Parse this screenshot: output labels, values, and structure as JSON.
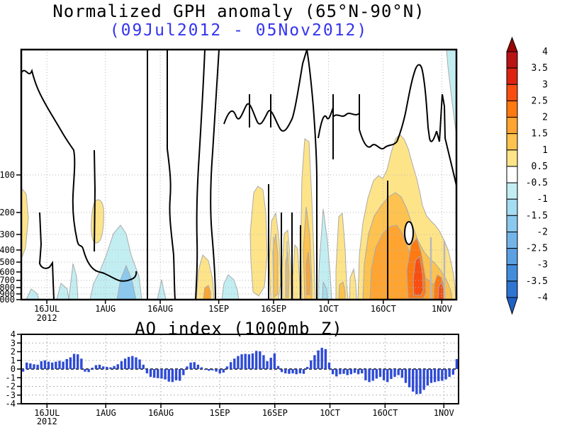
{
  "header": {
    "title": "Normalized GPH anomaly (65°N-90°N)",
    "subtitle": "(09Jul2012 - 05Nov2012)",
    "subtitle_color": "#3434f0"
  },
  "colorbar": {
    "boundary_labels": [
      "4",
      "3.5",
      "3",
      "2.5",
      "2",
      "1.5",
      "1",
      "0.5",
      "-0.5",
      "-1",
      "-1.5",
      "-2",
      "-2.5",
      "-3",
      "-3.5",
      "-4"
    ],
    "segment_colors": [
      "#b81414",
      "#dc2310",
      "#f84e12",
      "#ff7911",
      "#ffa431",
      "#fdc24f",
      "#fee489",
      "#ffffff",
      "#c2eef2",
      "#a4dcf2",
      "#8bc8ee",
      "#73b4e8",
      "#5ba0e2",
      "#438cdb",
      "#2e75d1"
    ],
    "arrow_top_color": "#9a0404",
    "arrow_bottom_color": "#2161c6"
  },
  "chart_data": [
    {
      "type": "heatmap",
      "title": "Normalized GPH anomaly (65°N-90°N)",
      "subtitle": "(09Jul2012 - 05Nov2012)",
      "xlabel": "",
      "ylabel": "",
      "x_range": [
        "09Jul2012",
        "05Nov2012"
      ],
      "x_tick_labels": [
        "16JUL",
        "1AUG",
        "16AUG",
        "1SEP",
        "16SEP",
        "1OCT",
        "16OCT",
        "1NOV"
      ],
      "x_tick_days_from_start": [
        7,
        23,
        38,
        54,
        69,
        84,
        99,
        115
      ],
      "x_year_label": "2012",
      "y_scale": "log",
      "y_tick_labels": [
        "100",
        "200",
        "300",
        "400",
        "500",
        "600",
        "700",
        "800",
        "900",
        "1000"
      ],
      "y_tick_values_mb": [
        100,
        200,
        300,
        400,
        500,
        600,
        700,
        800,
        900,
        1000
      ],
      "y_range_mb": [
        10,
        1000
      ],
      "contour_interval": 0.5,
      "colorbar_levels": [
        -4,
        -3.5,
        -3,
        -2.5,
        -2,
        -1.5,
        -1,
        -0.5,
        0.5,
        1,
        1.5,
        2,
        2.5,
        3,
        3.5,
        4
      ],
      "zero_contour_color": "#000000",
      "grid": "dotted gray, on",
      "features": [
        {
          "period": "09-11 Jul",
          "pressure_mb": [
            150,
            450
          ],
          "anomaly": "+0.5 to +1"
        },
        {
          "period": "12-21 Jul",
          "pressure_mb": [
            600,
            1000
          ],
          "anomaly": "-1 to -0.5"
        },
        {
          "period": "28 Jul - 01 Aug",
          "pressure_mb": [
            250,
            450
          ],
          "anomaly": "+0.5 to +1"
        },
        {
          "period": "01-10 Aug",
          "pressure_mb": [
            300,
            1000
          ],
          "anomaly": "-1.5 to -0.5"
        },
        {
          "period": "26-31 Aug",
          "pressure_mb": [
            450,
            1000
          ],
          "anomaly": "+0.5 to +1.5"
        },
        {
          "period": "02-06 Sep",
          "pressure_mb": [
            550,
            1000
          ],
          "anomaly": "-1 to -0.5"
        },
        {
          "period": "09-14 Sep",
          "pressure_mb": [
            150,
            900
          ],
          "anomaly": "+0.5 to +1"
        },
        {
          "period": "16-24 Sep",
          "pressure_mb": [
            60,
            1000
          ],
          "anomaly": "+0.5 to +2, narrow columns"
        },
        {
          "period": "28 Sep - 02 Oct",
          "pressure_mb": [
            450,
            1000
          ],
          "anomaly": "-2 to -0.5"
        },
        {
          "period": "03-08 Oct",
          "pressure_mb": [
            500,
            1000
          ],
          "anomaly": "+0.5 to +1.5"
        },
        {
          "period": "11 Oct - 05 Nov",
          "pressure_mb": [
            60,
            1000
          ],
          "anomaly": "+0.5 to +3, max ~+2.5 to +3 near 500-850mb around 21-26 Oct"
        },
        {
          "period": "29 Oct - 05 Nov",
          "pressure_mb": [
            10,
            60
          ],
          "anomaly": "-1 to -0.5"
        }
      ]
    },
    {
      "type": "bar",
      "title": "AO index (1000mb Z)",
      "ylim": [
        -4,
        4
      ],
      "y_tick_labels": [
        "4",
        "3",
        "2",
        "1",
        "0",
        "-1",
        "-2",
        "-3",
        "-4"
      ],
      "x_tick_labels": [
        "16JUL",
        "1AUG",
        "16AUG",
        "1SEP",
        "16SEP",
        "1OCT",
        "16OCT",
        "1NOV"
      ],
      "x_tick_days_from_start": [
        7,
        23,
        38,
        54,
        69,
        84,
        99,
        115
      ],
      "x_year_label": "2012",
      "start_date": "09Jul2012",
      "end_date": "05Nov2012",
      "bar_color": "#2e4bd6",
      "values": [
        -0.3,
        0.75,
        0.65,
        0.55,
        0.5,
        0.9,
        1.0,
        0.85,
        0.75,
        0.85,
        0.95,
        0.85,
        1.15,
        1.35,
        1.75,
        1.7,
        1.2,
        -0.3,
        -0.35,
        0.15,
        0.45,
        0.5,
        0.3,
        0.25,
        0.2,
        0.35,
        0.55,
        0.9,
        1.2,
        1.4,
        1.5,
        1.35,
        1.1,
        0.5,
        -0.5,
        -0.9,
        -1.0,
        -1.05,
        -1.1,
        -1.2,
        -1.45,
        -1.5,
        -1.3,
        -1.35,
        -0.7,
        0.3,
        0.75,
        0.8,
        0.5,
        0.2,
        -0.1,
        -0.2,
        -0.15,
        -0.3,
        -0.5,
        -0.4,
        0.3,
        0.8,
        1.2,
        1.5,
        1.7,
        1.75,
        1.7,
        1.8,
        2.1,
        2.05,
        1.6,
        0.9,
        1.3,
        1.8,
        0.35,
        -0.35,
        -0.5,
        -0.55,
        -0.5,
        -0.6,
        -0.5,
        -0.55,
        0.25,
        1.0,
        1.6,
        2.15,
        2.45,
        2.3,
        0.75,
        -0.6,
        -0.85,
        -0.6,
        -0.55,
        -0.7,
        -0.6,
        -0.45,
        -0.6,
        -0.5,
        -1.3,
        -1.5,
        -1.35,
        -1.1,
        -0.9,
        -1.3,
        -1.5,
        -1.15,
        -0.9,
        -0.7,
        -1.0,
        -1.6,
        -2.1,
        -2.6,
        -2.9,
        -2.85,
        -2.4,
        -1.9,
        -1.6,
        -1.5,
        -1.4,
        -1.35,
        -1.2,
        -0.9,
        -0.65,
        1.15
      ]
    }
  ]
}
